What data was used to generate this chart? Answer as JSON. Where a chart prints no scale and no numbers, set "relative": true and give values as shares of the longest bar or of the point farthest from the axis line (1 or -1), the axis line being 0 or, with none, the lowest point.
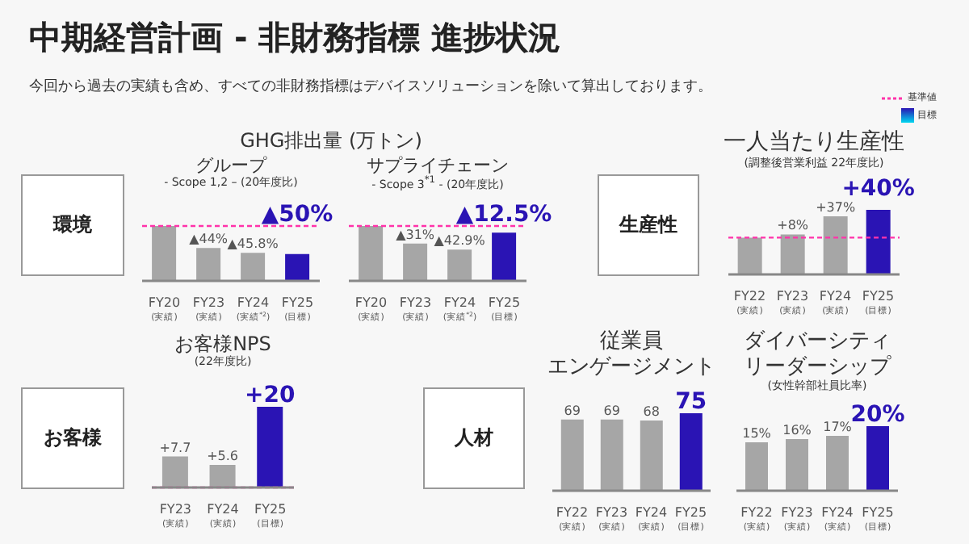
{
  "chart_data": [
    {
      "type": "other",
      "title": "中期経営計画 - 非財務指標 進捗状況",
      "annotations": [
        "今回から過去の実績も含め、すべての非財務指標はデバイスソリューションを除いて算出しております。",
        "環境",
        "生産性",
        "お客様",
        "人材",
        "GHG排出量 (万トン)",
        "基準値",
        "目標"
      ]
    },
    {
      "type": "bar",
      "title": "グループ",
      "subtitle": "- Scope 1,2 – (20年度比)",
      "categories": [
        "FY20\n(実績)",
        "FY23\n(実績)",
        "FY24\n(実績$^{*2}$)",
        "FY25\n(目標)"
      ],
      "values": [
        1,
        0.6,
        0.51,
        0.49
      ],
      "relative": true,
      "colors": [
        "#a6a6a6",
        "#a6a6a6",
        "#a6a6a6",
        "#2a14b4"
      ],
      "annotations": [
        "▲44%",
        "▲45.8%",
        "▲50%"
      ],
      "ref_lines": [
        {
          "axis": "y",
          "value": 1,
          "color": "#ff33aa",
          "line_style": "dashed"
        }
      ]
    },
    {
      "type": "bar",
      "title": "サプライチェーン",
      "subtitle": "- Scope 3$^{*1}$ -  (20年度比)",
      "categories": [
        "FY20\n(実績)",
        "FY23\n(実績)",
        "FY24\n(実績$^{*2}$)",
        "FY25\n(目標)"
      ],
      "values": [
        1,
        0.68,
        0.57,
        0.88
      ],
      "relative": true,
      "colors": [
        "#a6a6a6",
        "#a6a6a6",
        "#a6a6a6",
        "#2a14b4"
      ],
      "annotations": [
        "▲31%",
        "▲42.9%",
        "▲12.5%"
      ],
      "ref_lines": [
        {
          "axis": "y",
          "value": 1,
          "color": "#ff33aa",
          "line_style": "dashed"
        }
      ]
    },
    {
      "type": "bar",
      "title": "一人当たり生産性",
      "subtitle": "(調整後営業利益 22年度比)",
      "categories": [
        "FY22\n(実績)",
        "FY23\n(実績)",
        "FY24\n(実績)",
        "FY25\n(目標)"
      ],
      "values": [
        0.57,
        0.62,
        0.9,
        1
      ],
      "relative": true,
      "colors": [
        "#a6a6a6",
        "#a6a6a6",
        "#a6a6a6",
        "#2a14b4"
      ],
      "annotations": [
        "+8%",
        "+37%",
        "+40%"
      ],
      "ref_lines": [
        {
          "axis": "y",
          "value": 0.57,
          "color": "#ff33aa",
          "line_style": "dashed"
        }
      ]
    },
    {
      "type": "bar",
      "title": "お客様NPS",
      "subtitle": "(22年度比)",
      "categories": [
        "FY23\n(実績)",
        "FY24\n(実績)",
        "FY25\n(目標)"
      ],
      "values": [
        7.7,
        5.6,
        20
      ],
      "colors": [
        "#a6a6a6",
        "#a6a6a6",
        "#2a14b4"
      ],
      "value_labels": [
        "+7.7",
        "+5.6",
        "+20"
      ],
      "ref_lines": [
        {
          "axis": "y",
          "value": 0,
          "color": "#ff33aa",
          "line_style": "dashed"
        }
      ],
      "tick_labels": "x"
    },
    {
      "type": "bar",
      "title": "従業員",
      "subtitle": "エンゲージメント",
      "categories": [
        "FY22\n(実績)",
        "FY23\n(実績)",
        "FY24\n(実績)",
        "FY25\n(目標)"
      ],
      "values": [
        69,
        69,
        68,
        75
      ],
      "colors": [
        "#a6a6a6",
        "#a6a6a6",
        "#a6a6a6",
        "#2a14b4"
      ],
      "data_labels": true,
      "tick_labels": "x"
    },
    {
      "type": "bar",
      "title": "ダイバーシティリーダーシップ",
      "subtitle": "(女性幹部社員比率)",
      "categories": [
        "FY22\n(実績)",
        "FY23\n(実績)",
        "FY24\n(実績)",
        "FY25\n(目標)"
      ],
      "values": [
        15,
        16,
        17,
        20
      ],
      "colors": [
        "#a6a6a6",
        "#a6a6a6",
        "#a6a6a6",
        "#2a14b4"
      ],
      "value_labels": [
        "15%",
        "16%",
        "17%",
        "20%"
      ],
      "tick_labels": "x"
    }
  ]
}
